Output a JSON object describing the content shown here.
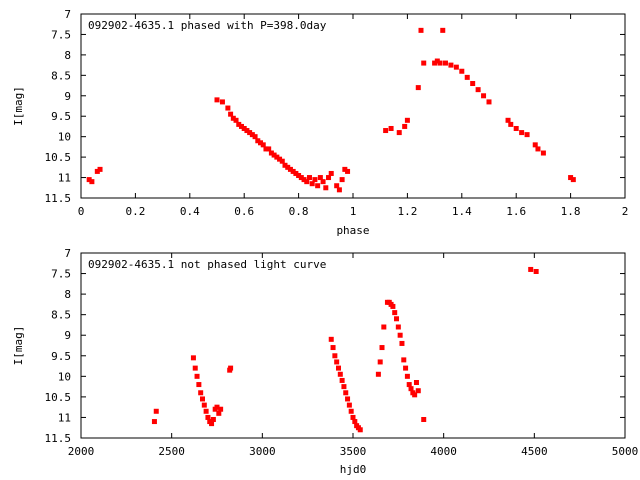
{
  "colors": {
    "points": "#ff0000",
    "frame": "#000000",
    "background": "#ffffff"
  },
  "chart_data": [
    {
      "type": "scatter",
      "title": "092902-4635.1 phased with P=398.0day",
      "xlabel": "phase",
      "ylabel": "I[mag]",
      "xlim": [
        0,
        2
      ],
      "ylim": [
        11.5,
        7
      ],
      "y_inverted": true,
      "grid": false,
      "xticks": [
        "0",
        "0.2",
        "0.4",
        "0.6",
        "0.8",
        "1",
        "1.2",
        "1.4",
        "1.6",
        "1.8",
        "2"
      ],
      "yticks": [
        "7",
        "7.5",
        "8",
        "8.5",
        "9",
        "9.5",
        "10",
        "10.5",
        "11",
        "11.5"
      ],
      "series": [
        {
          "x": [
            0.03,
            0.04,
            0.06,
            0.07,
            0.5,
            0.52,
            0.54,
            0.55,
            0.56,
            0.57,
            0.58,
            0.59,
            0.6,
            0.61,
            0.62,
            0.63,
            0.64,
            0.65,
            0.66,
            0.67,
            0.68,
            0.69,
            0.7,
            0.71,
            0.72,
            0.73,
            0.74,
            0.75,
            0.76,
            0.77,
            0.78,
            0.79,
            0.8,
            0.81,
            0.82,
            0.83,
            0.84,
            0.85,
            0.86,
            0.87,
            0.88,
            0.89,
            0.9,
            0.91,
            0.92,
            0.94,
            0.95,
            0.96,
            0.97,
            0.98,
            1.12,
            1.14,
            1.17,
            1.19,
            1.2,
            1.24,
            1.25,
            1.26,
            1.3,
            1.31,
            1.32,
            1.33,
            1.34,
            1.36,
            1.38,
            1.4,
            1.42,
            1.44,
            1.46,
            1.48,
            1.5,
            1.57,
            1.58,
            1.6,
            1.62,
            1.64,
            1.67,
            1.68,
            1.7,
            1.8,
            1.81
          ],
          "y": [
            11.05,
            11.1,
            10.85,
            10.8,
            9.1,
            9.15,
            9.3,
            9.45,
            9.55,
            9.6,
            9.7,
            9.75,
            9.8,
            9.85,
            9.9,
            9.95,
            10.0,
            10.1,
            10.15,
            10.2,
            10.3,
            10.3,
            10.4,
            10.45,
            10.5,
            10.55,
            10.6,
            10.7,
            10.75,
            10.8,
            10.85,
            10.9,
            10.95,
            11.0,
            11.05,
            11.1,
            11.0,
            11.15,
            11.05,
            11.2,
            11.0,
            11.1,
            11.25,
            11.0,
            10.9,
            11.2,
            11.3,
            11.05,
            10.8,
            10.85,
            9.85,
            9.8,
            9.9,
            9.75,
            9.6,
            8.8,
            7.4,
            8.2,
            8.2,
            8.15,
            8.2,
            7.4,
            8.2,
            8.25,
            8.3,
            8.4,
            8.55,
            8.7,
            8.85,
            9.0,
            9.15,
            9.6,
            9.7,
            9.8,
            9.9,
            9.95,
            10.2,
            10.3,
            10.4,
            11.0,
            11.05
          ]
        }
      ]
    },
    {
      "type": "scatter",
      "title": "092902-4635.1 not phased light curve",
      "xlabel": "hjd0",
      "ylabel": "I[mag]",
      "xlim": [
        2000,
        5000
      ],
      "ylim": [
        11.5,
        7
      ],
      "y_inverted": true,
      "grid": false,
      "xticks": [
        "2000",
        "2500",
        "3000",
        "3500",
        "4000",
        "4500",
        "5000"
      ],
      "yticks": [
        "7",
        "7.5",
        "8",
        "8.5",
        "9",
        "9.5",
        "10",
        "10.5",
        "11",
        "11.5"
      ],
      "series": [
        {
          "x": [
            2405,
            2415,
            2620,
            2630,
            2640,
            2650,
            2660,
            2670,
            2680,
            2690,
            2700,
            2710,
            2720,
            2730,
            2740,
            2750,
            2760,
            2770,
            2820,
            2825,
            3380,
            3390,
            3400,
            3410,
            3420,
            3430,
            3440,
            3450,
            3460,
            3470,
            3480,
            3490,
            3500,
            3510,
            3520,
            3530,
            3540,
            3640,
            3650,
            3660,
            3670,
            3690,
            3700,
            3710,
            3720,
            3730,
            3740,
            3750,
            3760,
            3770,
            3780,
            3790,
            3800,
            3810,
            3820,
            3830,
            3840,
            3850,
            3860,
            3890,
            4480,
            4510
          ],
          "y": [
            11.1,
            10.85,
            9.55,
            9.8,
            10.0,
            10.2,
            10.4,
            10.55,
            10.7,
            10.85,
            11.0,
            11.1,
            11.15,
            11.05,
            10.8,
            10.75,
            10.9,
            10.8,
            9.85,
            9.8,
            9.1,
            9.3,
            9.5,
            9.65,
            9.8,
            9.95,
            10.1,
            10.25,
            10.4,
            10.55,
            10.7,
            10.85,
            11.0,
            11.1,
            11.2,
            11.25,
            11.3,
            9.95,
            9.65,
            9.3,
            8.8,
            8.2,
            8.2,
            8.25,
            8.3,
            8.45,
            8.6,
            8.8,
            9.0,
            9.2,
            9.6,
            9.8,
            10.0,
            10.2,
            10.3,
            10.4,
            10.45,
            10.15,
            10.35,
            11.05,
            7.4,
            7.45
          ]
        }
      ]
    }
  ]
}
